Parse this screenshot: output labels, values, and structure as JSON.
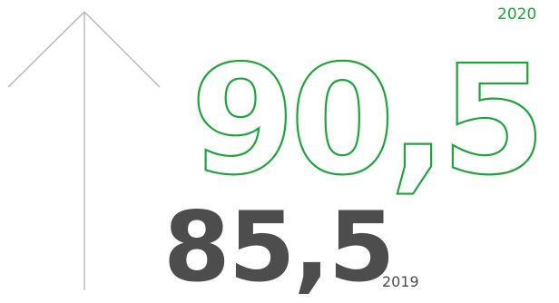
{
  "current": {
    "value": "90,5",
    "year": "2020",
    "color": "#1fa33b"
  },
  "previous": {
    "value": "85,5",
    "year": "2019",
    "color": "#4d4d4d"
  },
  "arrow": {
    "icon": "up-arrow-icon",
    "color": "#b3b3b3"
  }
}
